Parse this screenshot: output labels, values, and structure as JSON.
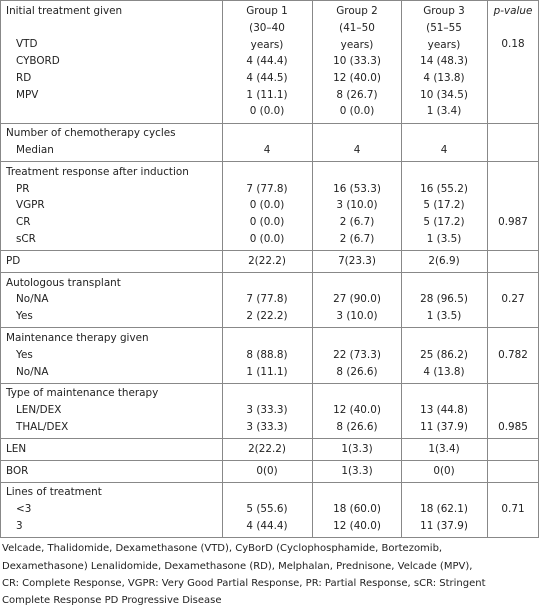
{
  "header": {
    "title": "Initial treatment given",
    "columns": [
      "Group 1 (30–40 years)",
      "Group 2 (41–50 years)",
      "Group 3 (51–55 years)"
    ],
    "p_value": "p-value"
  },
  "sections": [
    {
      "rows": [
        [
          "VTD",
          null,
          null,
          null,
          "0.18"
        ],
        [
          "CYBORD",
          "4 (44.4)",
          "10 (33.3)",
          "14 (48.3)",
          null
        ],
        [
          "RD",
          "4 (44.5)",
          "12 (40.0)",
          "4 (13.8)",
          null
        ],
        [
          "MPV",
          "1 (11.1)",
          "8 (26.7)",
          "10 (34.5)",
          null
        ],
        [
          null,
          "0 (0.0)",
          "0 (0.0)",
          "1 (3.4)",
          null
        ]
      ]
    },
    {
      "title": "Number of chemotherapy cycles",
      "rows": [
        [
          "Median",
          "4",
          "4",
          "4",
          null
        ]
      ]
    },
    {
      "title": "Treatment response after induction",
      "rows": [
        [
          "PR",
          "7 (77.8)",
          "16 (53.3)",
          "16 (55.2)",
          null
        ],
        [
          "VGPR",
          "0 (0.0)",
          "3 (10.0)",
          "5 (17.2)",
          null
        ],
        [
          "CR",
          "0 (0.0)",
          "2 (6.7)",
          "5 (17.2)",
          "0.987"
        ],
        [
          "sCR",
          "0 (0.0)",
          "2 (6.7)",
          "1 (3.5)",
          null
        ]
      ]
    },
    {
      "rows": [
        [
          "PD",
          "2(22.2)",
          "7(23.3)",
          "2(6.9)",
          null
        ]
      ]
    },
    {
      "title": "Autologous transplant",
      "rows": [
        [
          "No/NA",
          "7 (77.8)",
          "27 (90.0)",
          "28 (96.5)",
          "0.27"
        ],
        [
          "Yes",
          "2 (22.2)",
          "3 (10.0)",
          "1 (3.5)",
          null
        ]
      ]
    },
    {
      "title": "Maintenance therapy given",
      "rows": [
        [
          "Yes",
          "8 (88.8)",
          "22 (73.3)",
          "25 (86.2)",
          "0.782"
        ],
        [
          "No/NA",
          "1 (11.1)",
          "8 (26.6)",
          "4 (13.8)",
          null
        ]
      ]
    },
    {
      "title": "Type of maintenance therapy",
      "rows": [
        [
          "LEN/DEX",
          "3 (33.3)",
          "12 (40.0)",
          "13 (44.8)",
          null
        ],
        [
          "THAL/DEX",
          "3 (33.3)",
          "8 (26.6)",
          "11 (37.9)",
          "0.985"
        ]
      ]
    },
    {
      "rows": [
        [
          "LEN",
          "2(22.2)",
          "1(3.3)",
          "1(3.4)",
          null
        ]
      ]
    },
    {
      "rows": [
        [
          "BOR",
          "0(0)",
          "1(3.3)",
          "0(0)",
          null
        ]
      ]
    },
    {
      "title": "Lines of treatment",
      "rows": [
        [
          "<3",
          "5 (55.6)",
          "18 (60.0)",
          "18 (62.1)",
          "0.71"
        ],
        [
          "3",
          "4 (44.4)",
          "12 (40.0)",
          "11 (37.9)",
          null
        ]
      ]
    }
  ],
  "footnote": [
    "Velcade, Thalidomide, Dexamethasone (VTD), CyBorD (Cyclophosphamide, Bortezomib,",
    "Dexamethasone) Lenalidomide, Dexamethasone (RD), Melphalan, Prednisone, Velcade (MPV),",
    "CR: Complete Response, VGPR: Very Good Partial Response, PR: Partial Response, sCR: Stringent",
    "Complete Response PD Progressive Disease"
  ]
}
